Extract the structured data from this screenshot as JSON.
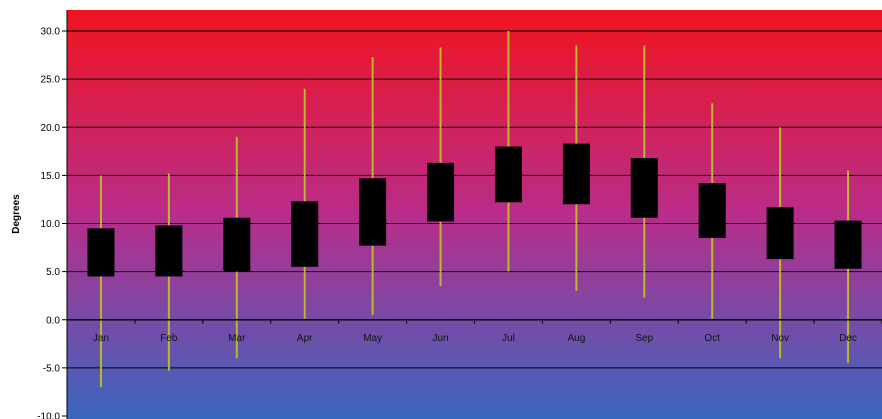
{
  "chart_data": {
    "type": "candlestick",
    "ylabel": "Degrees",
    "ylim": [
      -10,
      30
    ],
    "ytick_step": 5,
    "yticks": [
      "30.0",
      "25.0",
      "20.0",
      "15.0",
      "10.0",
      "5.0",
      "0.0",
      "-5.0",
      "-10.0"
    ],
    "grid": true,
    "categories": [
      "Jan",
      "Feb",
      "Mar",
      "Apr",
      "May",
      "Jun",
      "Jul",
      "Aug",
      "Sep",
      "Oct",
      "Nov",
      "Dec"
    ],
    "boxes": [
      {
        "low": -7.0,
        "q1": 4.5,
        "q3": 9.5,
        "high": 15.0
      },
      {
        "low": -5.3,
        "q1": 4.5,
        "q3": 9.8,
        "high": 15.2
      },
      {
        "low": -4.0,
        "q1": 5.0,
        "q3": 10.6,
        "high": 19.0
      },
      {
        "low": 0.0,
        "q1": 5.5,
        "q3": 12.3,
        "high": 24.0
      },
      {
        "low": 0.5,
        "q1": 7.7,
        "q3": 14.7,
        "high": 27.3
      },
      {
        "low": 3.5,
        "q1": 10.2,
        "q3": 16.3,
        "high": 28.3
      },
      {
        "low": 5.0,
        "q1": 12.2,
        "q3": 18.0,
        "high": 30.0
      },
      {
        "low": 3.0,
        "q1": 12.0,
        "q3": 18.3,
        "high": 28.5
      },
      {
        "low": 2.3,
        "q1": 10.6,
        "q3": 16.8,
        "high": 28.5
      },
      {
        "low": 0.0,
        "q1": 8.5,
        "q3": 14.2,
        "high": 22.5
      },
      {
        "low": -4.0,
        "q1": 6.3,
        "q3": 11.7,
        "high": 20.0
      },
      {
        "low": -4.5,
        "q1": 5.3,
        "q3": 10.3,
        "high": 15.5
      }
    ],
    "colors": {
      "background_top": "#f0141e",
      "background_mid": "#b82d8a",
      "background_bottom": "#3a67c0",
      "box": "#000000",
      "whisker": "#b9b92a",
      "grid": "#000000"
    }
  }
}
